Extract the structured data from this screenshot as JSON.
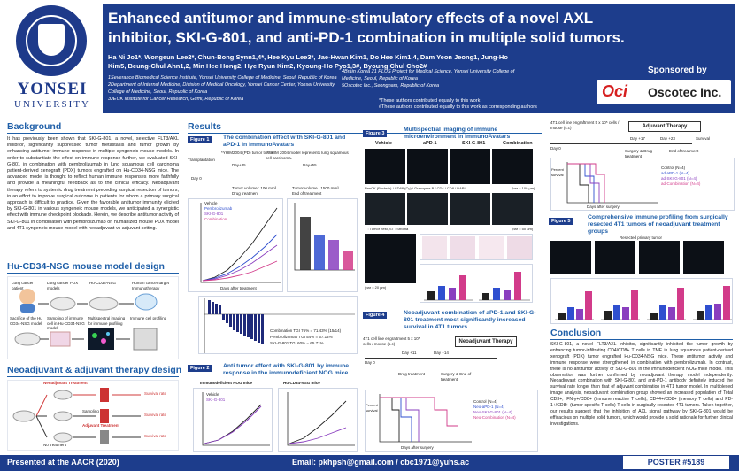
{
  "header": {
    "university": "YONSEI",
    "university_sub": "UNIVERSITY",
    "title": "Enhanced antitumor and immune-stimulatory effects of a novel AXL inhibitor, SKI-G-801, and anti-PD-1 combination in multiple solid tumors.",
    "authors": "Ha Ni Jo1*, Wongeun Lee2*, Chun-Bong Synn1,4*, Hee Kyu Lee3*, Jae-Hwan Kim1, Do Hee Kim1,4, Dam Yeon Jeong1, Jung-Ho Kim5, Beung-Chul Ahn1,2, Min Hee Hong2, Hye Ryun Kim2, Kyoung-Ho Pyo1,3#, Byoung Chul Cho2#",
    "affiliations_left": [
      "1Severance Biomedical Science Institute, Yonsei University College of Medicine, Seoul, Republic of Korea",
      "2Department of Internal Medicine, Division of Medical Oncology, Yonsei Cancer Center, Yonsei University College of Medicine, Seoul, Republic of Korea",
      "3JEUK Institute for Cancer Research, Gumi, Republic of Korea"
    ],
    "affiliations_right": [
      "4Brain Korea 21 PLUS Project for Medical Science, Yonsei University College of Medicine, Seoul, Republic of Korea",
      "5Oscotec Inc., Seongnam, Republic of Korea"
    ],
    "notes": [
      "*These authors contributed equally to this work",
      "#These authors contributed equally to this work as corresponding authors"
    ],
    "sponsor_label": "Sponsored by",
    "sponsor_logo": "Oci",
    "sponsor_name": "Oscotec Inc."
  },
  "background": {
    "title": "Background",
    "text": "It has previously been shown that SKI-G-801, a novel, selective FLT3/AXL inhibitor, significantly suppressed tumor metastasis and tumor growth by enhancing antitumor immune response in multiple syngeneic mouse models. In order to substantiate the effect on immune response further, we evaluated SKI-G-801 in combination with pembrolizumab in lung squamous cell carcinoma patient-derived xenograft (PDX) tumors engrafted on Hu-CD34-NSG mice. The advanced model is thought to reflect human immune responses more faithfully and provide a meaningful feedback as to the clinical efficacy. Neoadjuvant therapy refers to systemic drug treatment preceding surgical resection of tumors, in an effort to improve surgical outcome in patients for whom a primary surgical approach is difficult to practice. Given the favorable antitumor immunity elicited by SKI-G-801 in various syngeneic mouse models, we anticipated a synergistic effect with immune checkpoint blockade. Herein, we describe antitumor activity of SKI-G-801 in combination with pembrolizumab on humanized mouse PDX model and 4T1 syngeneic mouse model with neoadjuvant vs adjuvant setting."
  },
  "hu_model": {
    "title": "Hu-CD34-NSG mouse model design",
    "labels": [
      "Lung cancer patient",
      "Lung cancer PDX models",
      "Hu-CD34-NSG",
      "Human cancer target Immunotherapy",
      "Sacrifice of the Hu CD34-NSG model",
      "Sampling of immune cell in Hu-CD34-NSG model",
      "Multispectral imaging for immune profiling",
      "Immune cell profiling"
    ]
  },
  "neo_design": {
    "title": "Neoadjuvant & adjuvant therapy design",
    "labels": [
      "Neoadjuvant Treatment",
      "Sampling",
      "Adjuvant Treatment",
      "No treatment",
      "Survival rate"
    ]
  },
  "results": {
    "title": "Results",
    "fig1": {
      "tag": "Figure 1",
      "title": "The combination effect with SKI-G-801 and aPD-1 in ImmunoAvatars",
      "note1": "*YHIM2004 (PD) tumor tissue",
      "note2": "**YHIM 2004 model represents lung squamous cell carcinoma.",
      "day0": "Day 0",
      "day35": "Day+35",
      "day55": "Day+55",
      "transplant": "Transplantation",
      "tv_start": "Tumor volume : 100 mm³",
      "tv_end": "Tumor volume : 1500 mm³",
      "drug": "Drug treatment",
      "end": "End of treatment",
      "legend": [
        "Vehicle",
        "Pembrolizumab",
        "SKI-G-801",
        "Combination"
      ],
      "xlabel": "Days after treatment",
      "waterfall": [
        "Combination TGI 76% = 71.43% (15/14)",
        "Pembrolizumab TGI 54% = 57.14%",
        "SKI-G-801 TGI 60% = 65.71%"
      ]
    },
    "fig2": {
      "tag": "Figure 2",
      "title": "Anti tumor effect with SKI-G-801 by immune response in the immunodeficient NOG mice",
      "left_title": "Immunodeficient NOG mice",
      "right_title": "Hu-CD34-NSG mice",
      "legend": [
        "Vehicle",
        "SKI-G-801"
      ]
    },
    "fig3": {
      "tag": "Figure 3",
      "title": "Multispectral imaging of immune microenvironment in ImmunoAvatars",
      "cols": [
        "Vehicle",
        "aPD-1",
        "SKI-G-801",
        "Combination"
      ],
      "stain": "PanCK (Fuchsin) / CD68 (Cy) / Granzyme B / CD4 / CD8 / DAPI",
      "t_label": "T : Tumor nest, ST : Stroma",
      "scale1": "(bar = 100 µm)",
      "scale2": "(bar = 50 µm)",
      "scale3": "(bar = 20 µm)"
    },
    "fig4": {
      "tag": "Figure 4",
      "title": "Neoadjuvant combination of aPD-1 and SKI-G-801 treatment most significantly increased survival in 4T1 tumors",
      "cells": "4T1 cell line engraftment 5 x 10⁵ cells / mouse (s.c)",
      "therapy": "Neoadjuvant Therapy",
      "day0": "Day 0",
      "day11": "Day +11",
      "day14": "Day +14",
      "drug": "Drug treatment",
      "surgery": "Surgery & End of treatment",
      "ylabel": "Percent survival",
      "xlabel": "Days after surgery",
      "legend": [
        "Control (N=4)",
        "Neo-aPD-1 (N=4)",
        "Neo-SKI-G-801 (N=4)",
        "Neo-Combination (N=4)"
      ]
    },
    "adjuvant": {
      "cells": "4T1 cell line engraftment 5 x 10⁵ cells / mouse (s.c)",
      "therapy": "Adjuvant Therapy",
      "day0": "Day 0",
      "day17": "Day +17",
      "day23": "Day +23",
      "survival": "Survival",
      "surgery": "Surgery & Drug treatment",
      "end": "End of treatment",
      "ylabel": "Percent survival",
      "xlabel": "Days after surgery",
      "legend": [
        "Control (N=4)",
        "ad-aPD-1 (N=4)",
        "ad-SKI-G-801 (N=4)",
        "ad-Combination (N=4)"
      ]
    },
    "fig5": {
      "tag": "Figure 5",
      "title": "Comprehensive immune profiling from surgically resected 4T1 tumors of neoadjuvant treatment groups",
      "sub": "Resected primary tumor"
    }
  },
  "conclusion": {
    "title": "Conclusion",
    "text": "SKI-G-801, a novel FLT3/AXL inhibitor, significantly inhibited the tumor growth by enhancing tumor-infiltrating CD4/CD8+ T cells in TME in lung squamous patient-derived xenograft (PDX) tumor engrafted Hu-CD34-NSG mice. These antitumor activity and immune response were strengthened in combination with pembrolizumab. In contrast, there is no antitumor activity of SKI-G-801 in the immunodeficient NOG mice model. This observation was further confirmed by neoadjuvant therapy model independently. Neoadjuvant combination with SKI-G-801 and anti-PD-1 antibody definitely induced the survival rate longer than that of adjuvant combination in 4T1 tumor model. In multiplexed image analysis, neoadjuvant combination group showed an increased population of Total CD3+, IFN-γ+/CD8+ (immune reactive T cells), CD44+/CD8+ (memory T cells) and PD-1+/CD8+ (tumor specific T cells) T cells in surgically resected 4T1 tumors. Taken together, our results suggest that the inhibition of AXL signal pathway by SKI-G-801 would be efficacious on multiple solid tumors, which would provide a solid rationale for further clinical investigations."
  },
  "footer": {
    "left": "Presented at the AACR (2020)",
    "email": "Email: pkhpsh@gmail.com / cbc1971@yuhs.ac",
    "poster": "POSTER #5189"
  },
  "colors": {
    "primary": "#1d3d8c",
    "accent": "#1f5fa8",
    "vehicle": "#222222",
    "pembro": "#2f4fcf",
    "ski": "#8a3fbf",
    "combo": "#d23b8a"
  }
}
